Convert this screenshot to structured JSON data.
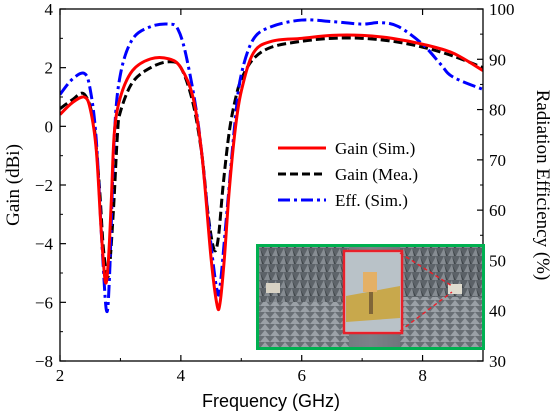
{
  "chart_data": {
    "type": "line",
    "xlabel": "Frequency (GHz)",
    "ylabel_left": "Gain (dBi)",
    "ylabel_right": "Radiation Efficiency (%)",
    "xlim": [
      2,
      9
    ],
    "ylim_left": [
      -8,
      4
    ],
    "ylim_right": [
      30,
      100
    ],
    "x_ticks": [
      "2",
      "4",
      "6",
      "8"
    ],
    "x_tick_values": [
      2,
      4,
      6,
      8
    ],
    "y_left_ticks": [
      "4",
      "2",
      "0",
      "−2",
      "−4",
      "−6",
      "−8"
    ],
    "y_left_tick_values": [
      4,
      2,
      0,
      -2,
      -4,
      -6,
      -8
    ],
    "y_right_ticks": [
      "100",
      "90",
      "80",
      "70",
      "60",
      "50",
      "40",
      "30"
    ],
    "y_right_tick_values": [
      100,
      90,
      80,
      70,
      60,
      50,
      40,
      30
    ],
    "grid": false,
    "legend_position": "right-middle",
    "series": [
      {
        "name": "Gain (Sim.)",
        "axis": "left",
        "color": "#ff0000",
        "style": "solid",
        "x": [
          2.0,
          2.2,
          2.4,
          2.5,
          2.6,
          2.68,
          2.75,
          2.8,
          2.85,
          2.9,
          3.0,
          3.2,
          3.5,
          3.8,
          4.0,
          4.2,
          4.35,
          4.5,
          4.6,
          4.65,
          4.72,
          4.8,
          4.9,
          5.0,
          5.2,
          5.5,
          6.0,
          6.5,
          7.0,
          7.5,
          8.0,
          8.5,
          9.0
        ],
        "y": [
          0.4,
          0.8,
          1.0,
          0.6,
          -0.8,
          -3.5,
          -5.3,
          -4.6,
          -2.5,
          -0.2,
          1.0,
          1.9,
          2.3,
          2.3,
          2.0,
          1.0,
          -1.0,
          -4.5,
          -6.1,
          -6.0,
          -4.5,
          -2.2,
          -0.1,
          1.2,
          2.5,
          2.9,
          3.0,
          3.1,
          3.1,
          3.0,
          2.8,
          2.5,
          1.9
        ]
      },
      {
        "name": "Gain (Mea.)",
        "axis": "left",
        "color": "#000000",
        "style": "dashed",
        "x": [
          2.0,
          2.2,
          2.4,
          2.55,
          2.65,
          2.72,
          2.8,
          2.88,
          2.95,
          3.0,
          3.2,
          3.5,
          3.8,
          4.0,
          4.2,
          4.35,
          4.45,
          4.55,
          4.62,
          4.7,
          4.8,
          4.9,
          5.0,
          5.2,
          5.5,
          6.0,
          6.5,
          7.0,
          7.5,
          8.0,
          8.5,
          9.0
        ],
        "y": [
          0.6,
          0.9,
          1.1,
          0.2,
          -2.0,
          -4.2,
          -5.1,
          -3.0,
          -0.3,
          0.5,
          1.5,
          2.0,
          2.2,
          2.0,
          0.8,
          -1.0,
          -3.0,
          -4.2,
          -3.8,
          -2.0,
          -0.2,
          0.9,
          1.6,
          2.3,
          2.7,
          2.9,
          3.0,
          3.0,
          2.9,
          2.7,
          2.4,
          2.0
        ]
      },
      {
        "name": "Eff. (Sim.)",
        "axis": "right",
        "color": "#0000ff",
        "style": "dashdot",
        "x": [
          2.0,
          2.2,
          2.4,
          2.5,
          2.6,
          2.7,
          2.77,
          2.82,
          2.9,
          3.0,
          3.2,
          3.5,
          3.8,
          3.95,
          4.1,
          4.3,
          4.5,
          4.6,
          4.65,
          4.75,
          4.9,
          5.0,
          5.2,
          5.5,
          6.0,
          6.5,
          7.0,
          7.3,
          7.6,
          8.0,
          8.3,
          8.5,
          9.0
        ],
        "y": [
          83,
          86,
          87.2,
          84,
          74,
          52,
          40,
          47,
          75,
          87,
          94,
          96.5,
          97,
          96,
          90,
          76,
          53,
          44,
          45,
          58,
          78,
          87,
          94,
          96.5,
          97.8,
          97.5,
          97,
          97.3,
          96.5,
          93,
          89,
          86.5,
          84
        ]
      }
    ],
    "inset": {
      "description_visible": false
    }
  }
}
